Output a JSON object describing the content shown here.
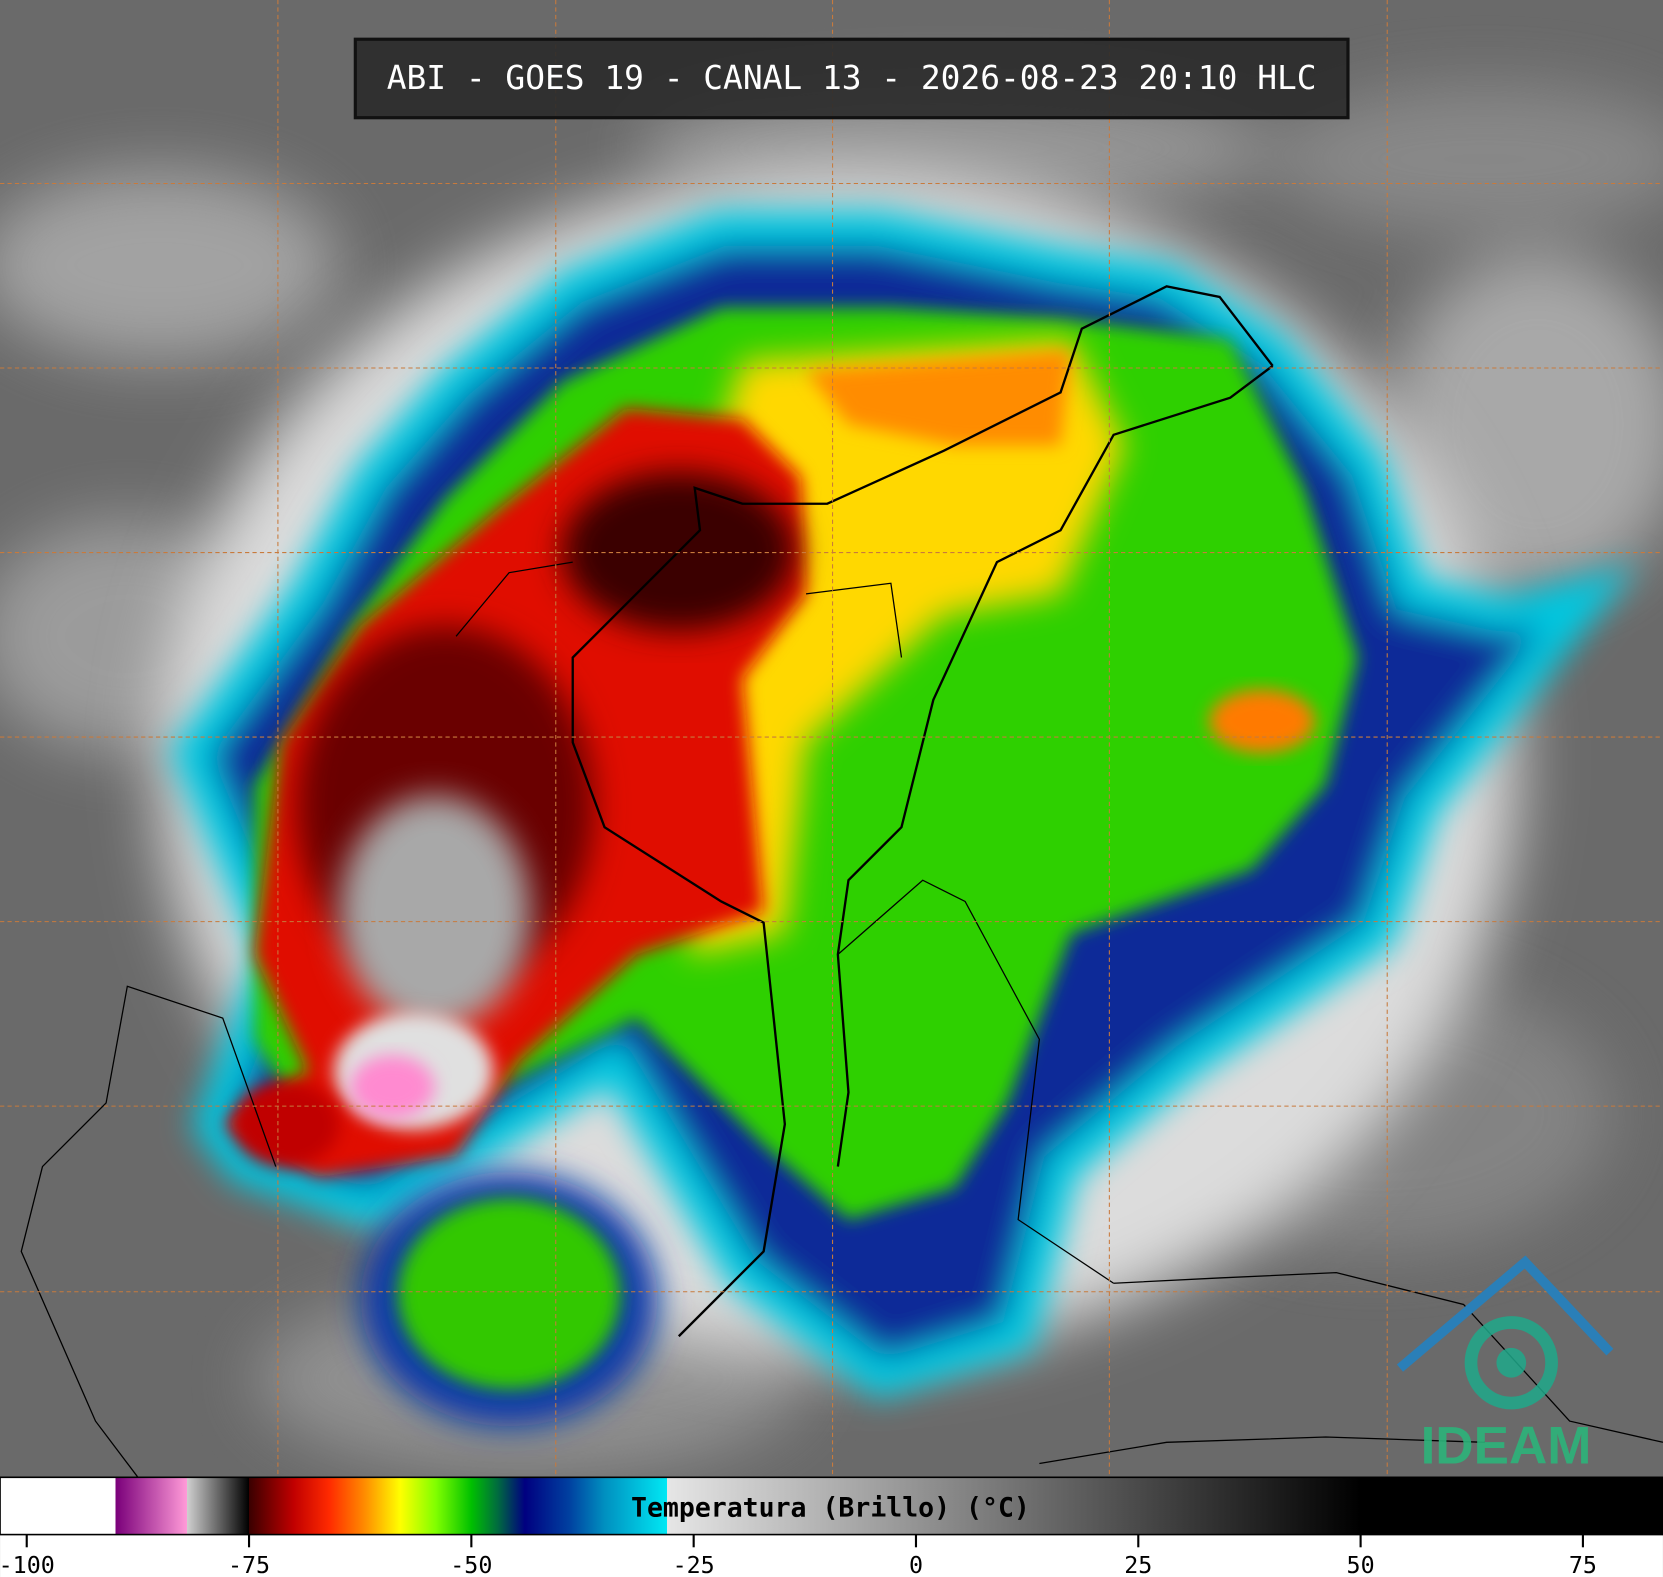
{
  "header": {
    "title": "ABI - GOES 19 - CANAL 13 - 2026-08-23 20:10 HLC"
  },
  "logo": {
    "text": "IDEAM"
  },
  "colorbar": {
    "label": "Temperatura (Brillo) (°C)",
    "xlim": [
      -103,
      84
    ],
    "xticks": [
      -100,
      -75,
      -50,
      -25,
      0,
      25,
      50,
      75
    ],
    "colormap": [
      {
        "value": -103,
        "color": "#ffffff"
      },
      {
        "value": -90,
        "color": "#ffffff"
      },
      {
        "value": -90,
        "color": "#7a007a"
      },
      {
        "value": -82,
        "color": "#ff9ad8"
      },
      {
        "value": -82,
        "color": "#d0d0d0"
      },
      {
        "value": -75,
        "color": "#000000"
      },
      {
        "value": -75,
        "color": "#3a0000"
      },
      {
        "value": -70,
        "color": "#c00000"
      },
      {
        "value": -66,
        "color": "#ff2a00"
      },
      {
        "value": -62,
        "color": "#ff8c00"
      },
      {
        "value": -58,
        "color": "#ffff00"
      },
      {
        "value": -54,
        "color": "#80ff00"
      },
      {
        "value": -50,
        "color": "#00c000"
      },
      {
        "value": -47,
        "color": "#006a40"
      },
      {
        "value": -44,
        "color": "#000080"
      },
      {
        "value": -39,
        "color": "#0040a0"
      },
      {
        "value": -35,
        "color": "#0090c0"
      },
      {
        "value": -28,
        "color": "#00e8f4"
      },
      {
        "value": -28,
        "color": "#e6e6e6"
      },
      {
        "value": 50,
        "color": "#000000"
      },
      {
        "value": 84,
        "color": "#000000"
      }
    ]
  }
}
